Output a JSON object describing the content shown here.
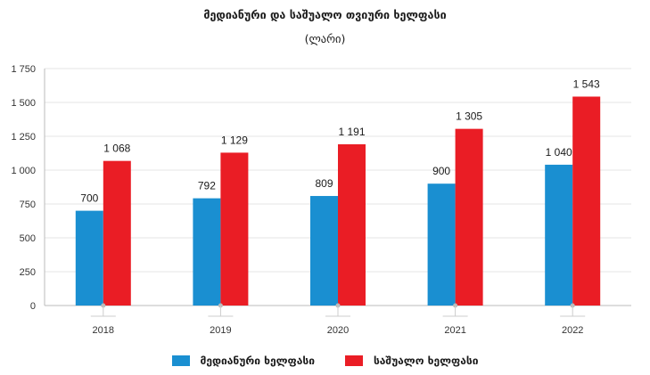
{
  "chart_data": {
    "type": "bar",
    "title": "მედიანური და საშუალო თვიური ხელფასი",
    "subtitle": "(ლარი)",
    "categories": [
      "2018",
      "2019",
      "2020",
      "2021",
      "2022"
    ],
    "series": [
      {
        "name": "მედიანური ხელფასი",
        "color": "#1a8fd1",
        "values": [
          700,
          792,
          809,
          900,
          1040
        ],
        "labels": [
          "700",
          "792",
          "809",
          "900",
          "1 040"
        ]
      },
      {
        "name": "საშუალო ხელფასი",
        "color": "#ea1d25",
        "values": [
          1068,
          1129,
          1191,
          1305,
          1543
        ],
        "labels": [
          "1 068",
          "1 129",
          "1 191",
          "1 305",
          "1 543"
        ]
      }
    ],
    "ylim": [
      0,
      1750
    ],
    "yticks": [
      0,
      250,
      500,
      750,
      1000,
      1250,
      1500,
      1750
    ],
    "ytick_labels": [
      "0",
      "250",
      "500",
      "750",
      "1 000",
      "1 250",
      "1 500",
      "1 750"
    ],
    "grid": true,
    "legend": "bottom"
  }
}
